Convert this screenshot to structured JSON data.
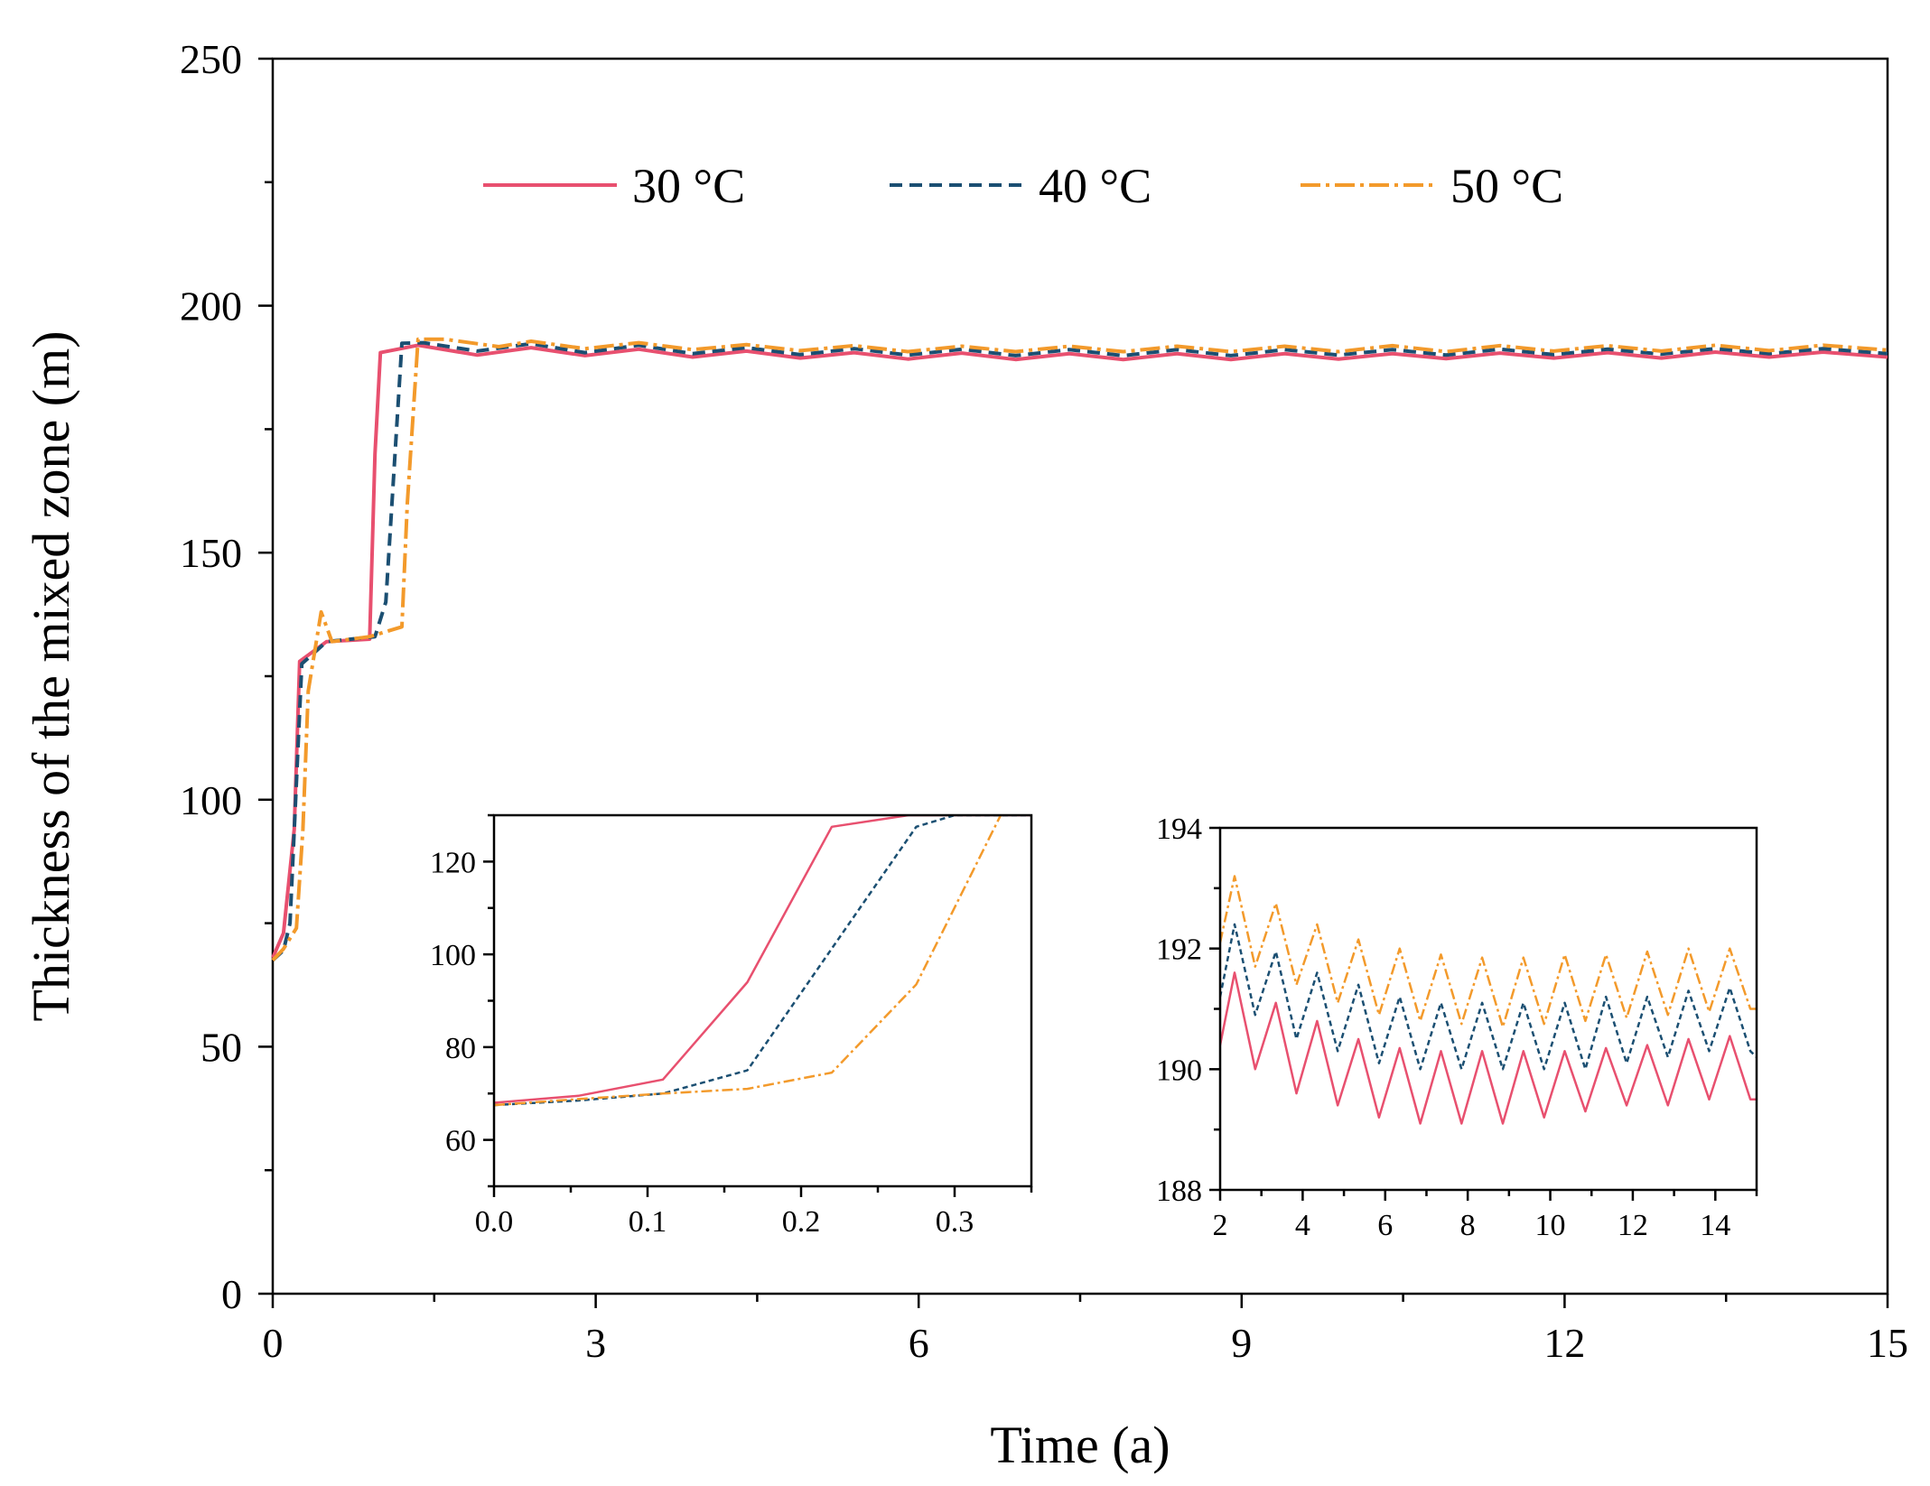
{
  "chart_data": {
    "type": "line",
    "xlabel": "Time (a)",
    "ylabel": "Thickness of the mixed zone (m)",
    "xlim": [
      0,
      15
    ],
    "ylim": [
      0,
      250
    ],
    "xticks": [
      "0",
      "3",
      "6",
      "9",
      "12",
      "15"
    ],
    "yticks": [
      "0",
      "50",
      "100",
      "150",
      "200",
      "250"
    ],
    "legend": {
      "position": "top",
      "entries": [
        "30 °C",
        "40 °C",
        "50 °C"
      ]
    },
    "series": [
      {
        "name": "30 °C",
        "color": "#e8506f",
        "style": "solid",
        "x": [
          0,
          0.1,
          0.2,
          0.25,
          0.5,
          0.9,
          0.95,
          1.0,
          1.35,
          1.9,
          2.4,
          2.9,
          3.4,
          3.9,
          4.4,
          4.9,
          5.4,
          5.9,
          6.4,
          6.9,
          7.4,
          7.9,
          8.4,
          8.9,
          9.4,
          9.9,
          10.4,
          10.9,
          11.4,
          11.9,
          12.4,
          12.9,
          13.4,
          13.9,
          14.4,
          15
        ],
        "y": [
          68,
          73,
          94,
          128,
          132,
          132.5,
          170,
          190.5,
          192,
          190,
          191.5,
          189.9,
          191.2,
          189.6,
          190.8,
          189.4,
          190.5,
          189.2,
          190.4,
          189.1,
          190.3,
          189.1,
          190.3,
          189.1,
          190.3,
          189.2,
          190.3,
          189.3,
          190.4,
          189.4,
          190.5,
          189.4,
          190.6,
          189.6,
          190.6,
          189.6
        ]
      },
      {
        "name": "40 °C",
        "color": "#1b4f72",
        "style": "dashed",
        "x": [
          0,
          0.1,
          0.16,
          0.27,
          0.5,
          0.95,
          1.05,
          1.2,
          1.4,
          1.9,
          2.4,
          2.9,
          3.4,
          3.9,
          4.4,
          4.9,
          5.4,
          5.9,
          6.4,
          6.9,
          7.4,
          7.9,
          8.4,
          8.9,
          9.4,
          9.9,
          10.4,
          10.9,
          11.4,
          11.9,
          12.4,
          12.9,
          13.4,
          13.9,
          14.4,
          15
        ],
        "y": [
          67.5,
          69.5,
          75,
          127.5,
          132,
          133,
          140,
          192.4,
          192.5,
          190.8,
          192.3,
          190.5,
          192,
          190.3,
          191.5,
          190.1,
          191.3,
          190,
          191.2,
          189.9,
          191.1,
          189.9,
          191.1,
          189.9,
          191.1,
          190,
          191.1,
          190,
          191.2,
          190.1,
          191.2,
          190.2,
          191.3,
          190.3,
          191.3,
          190.3
        ]
      },
      {
        "name": "50 °C",
        "color": "#f39a2b",
        "style": "dashdot",
        "x": [
          0,
          0.1,
          0.22,
          0.28,
          0.33,
          0.45,
          0.55,
          0.9,
          1.2,
          1.25,
          1.35,
          1.6,
          2.1,
          2.4,
          2.9,
          3.4,
          3.9,
          4.4,
          4.9,
          5.4,
          5.9,
          6.4,
          6.9,
          7.4,
          7.9,
          8.4,
          8.9,
          9.4,
          9.9,
          10.4,
          10.9,
          11.4,
          11.9,
          12.4,
          12.9,
          13.4,
          13.9,
          14.4,
          15
        ],
        "y": [
          67.5,
          69.8,
          74,
          94,
          122,
          138,
          132,
          133,
          135,
          160,
          193.2,
          193.2,
          191.7,
          192.8,
          191.3,
          192.5,
          191.1,
          192.1,
          190.9,
          191.9,
          190.7,
          191.8,
          190.7,
          191.8,
          190.7,
          191.8,
          190.7,
          191.8,
          190.7,
          191.9,
          190.7,
          191.9,
          190.8,
          191.9,
          190.8,
          192,
          190.9,
          192,
          191
        ]
      }
    ],
    "insets": [
      {
        "xlim": [
          0,
          0.35
        ],
        "ylim": [
          50,
          130
        ],
        "xticks": [
          "0.0",
          "0.1",
          "0.2",
          "0.3"
        ],
        "yticks": [
          "60",
          "80",
          "100",
          "120"
        ],
        "series_x": [
          [
            0,
            0.055,
            0.11,
            0.165,
            0.22,
            0.27,
            0.35
          ],
          [
            0,
            0.055,
            0.11,
            0.165,
            0.275,
            0.3,
            0.35
          ],
          [
            0,
            0.055,
            0.11,
            0.165,
            0.22,
            0.275,
            0.33
          ]
        ],
        "series_y": [
          [
            68,
            69.5,
            73,
            94,
            127.5,
            130,
            130
          ],
          [
            67.5,
            68.5,
            70,
            75,
            127.5,
            130,
            130
          ],
          [
            67.5,
            68.8,
            70,
            71,
            74.5,
            93.5,
            130
          ]
        ]
      },
      {
        "xlim": [
          2,
          15
        ],
        "ylim": [
          188,
          194
        ],
        "xticks": [
          "2",
          "4",
          "6",
          "8",
          "10",
          "12",
          "14"
        ],
        "yticks": [
          "188",
          "190",
          "192",
          "194"
        ],
        "series_x": [
          [
            2,
            2.35,
            2.85,
            3.35,
            3.85,
            4.35,
            4.85,
            5.35,
            5.85,
            6.35,
            6.85,
            7.35,
            7.85,
            8.35,
            8.85,
            9.35,
            9.85,
            10.35,
            10.85,
            11.35,
            11.85,
            12.35,
            12.85,
            13.35,
            13.85,
            14.35,
            14.85,
            15
          ],
          [
            2,
            2.35,
            2.85,
            3.35,
            3.85,
            4.35,
            4.85,
            5.35,
            5.85,
            6.35,
            6.85,
            7.35,
            7.85,
            8.35,
            8.85,
            9.35,
            9.85,
            10.35,
            10.85,
            11.35,
            11.85,
            12.35,
            12.85,
            13.35,
            13.85,
            14.35,
            14.85,
            15
          ],
          [
            2,
            2.35,
            2.85,
            3.35,
            3.85,
            4.35,
            4.85,
            5.35,
            5.85,
            6.35,
            6.85,
            7.35,
            7.85,
            8.35,
            8.85,
            9.35,
            9.85,
            10.35,
            10.85,
            11.35,
            11.85,
            12.35,
            12.85,
            13.35,
            13.85,
            14.35,
            14.85,
            15
          ]
        ],
        "series_y": [
          [
            190.4,
            191.6,
            190,
            191.1,
            189.6,
            190.8,
            189.4,
            190.5,
            189.2,
            190.35,
            189.1,
            190.3,
            189.1,
            190.3,
            189.1,
            190.3,
            189.2,
            190.3,
            189.3,
            190.35,
            189.4,
            190.4,
            189.4,
            190.5,
            189.5,
            190.55,
            189.5,
            189.5
          ],
          [
            191.2,
            192.4,
            190.9,
            191.95,
            190.5,
            191.6,
            190.3,
            191.4,
            190.1,
            191.2,
            190.0,
            191.1,
            190.0,
            191.1,
            190.0,
            191.1,
            190.0,
            191.1,
            190.0,
            191.2,
            190.1,
            191.2,
            190.2,
            191.3,
            190.3,
            191.35,
            190.3,
            190.2
          ],
          [
            192.1,
            193.2,
            191.7,
            192.75,
            191.4,
            192.4,
            191.1,
            192.15,
            190.9,
            192.0,
            190.8,
            191.9,
            190.75,
            191.85,
            190.7,
            191.85,
            190.75,
            191.9,
            190.8,
            191.9,
            190.85,
            191.95,
            190.9,
            192.0,
            190.95,
            192.0,
            191.0,
            191.0
          ]
        ]
      }
    ]
  }
}
